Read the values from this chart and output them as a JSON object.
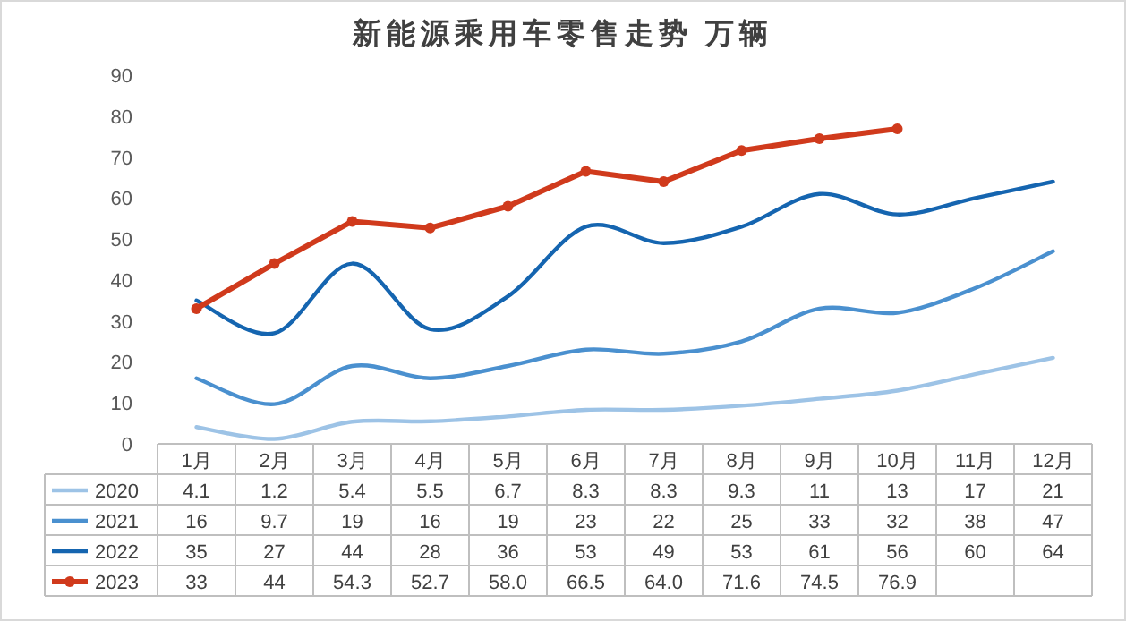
{
  "chart_data": {
    "type": "line",
    "title": "新能源乘用车零售走势 万辆",
    "categories": [
      "1月",
      "2月",
      "3月",
      "4月",
      "5月",
      "6月",
      "7月",
      "8月",
      "9月",
      "10月",
      "11月",
      "12月"
    ],
    "ylim": [
      0,
      90
    ],
    "yticks": [
      0,
      10,
      20,
      30,
      40,
      50,
      60,
      70,
      80,
      90
    ],
    "grid": false,
    "legend": "bottom",
    "data_labels": true,
    "series": [
      {
        "name": "2020",
        "color": "#9dc3e6",
        "marker": "none",
        "values": [
          4.1,
          1.2,
          5.4,
          5.5,
          6.7,
          8.3,
          8.3,
          9.3,
          11,
          13,
          17,
          21
        ],
        "value_labels": [
          "4.1",
          "1.2",
          "5.4",
          "5.5",
          "6.7",
          "8.3",
          "8.3",
          "9.3",
          "11",
          "13",
          "17",
          "21"
        ]
      },
      {
        "name": "2021",
        "color": "#4a90cf",
        "marker": "none",
        "values": [
          16,
          9.7,
          19,
          16,
          19,
          23,
          22,
          25,
          33,
          32,
          38,
          47
        ],
        "value_labels": [
          "16",
          "9.7",
          "19",
          "16",
          "19",
          "23",
          "22",
          "25",
          "33",
          "32",
          "38",
          "47"
        ]
      },
      {
        "name": "2022",
        "color": "#1565b0",
        "marker": "none",
        "values": [
          35,
          27,
          44,
          28,
          36,
          53,
          49,
          53,
          61,
          56,
          60,
          64
        ],
        "value_labels": [
          "35",
          "27",
          "44",
          "28",
          "36",
          "53",
          "49",
          "53",
          "61",
          "56",
          "60",
          "64"
        ]
      },
      {
        "name": "2023",
        "color": "#d03a1c",
        "marker": "circle",
        "values": [
          33,
          44,
          54.3,
          52.7,
          58.0,
          66.5,
          64.0,
          71.6,
          74.5,
          76.9,
          null,
          null
        ],
        "value_labels": [
          "33",
          "44",
          "54.3",
          "52.7",
          "58.0",
          "66.5",
          "64.0",
          "71.6",
          "74.5",
          "76.9",
          null,
          null
        ]
      }
    ]
  }
}
